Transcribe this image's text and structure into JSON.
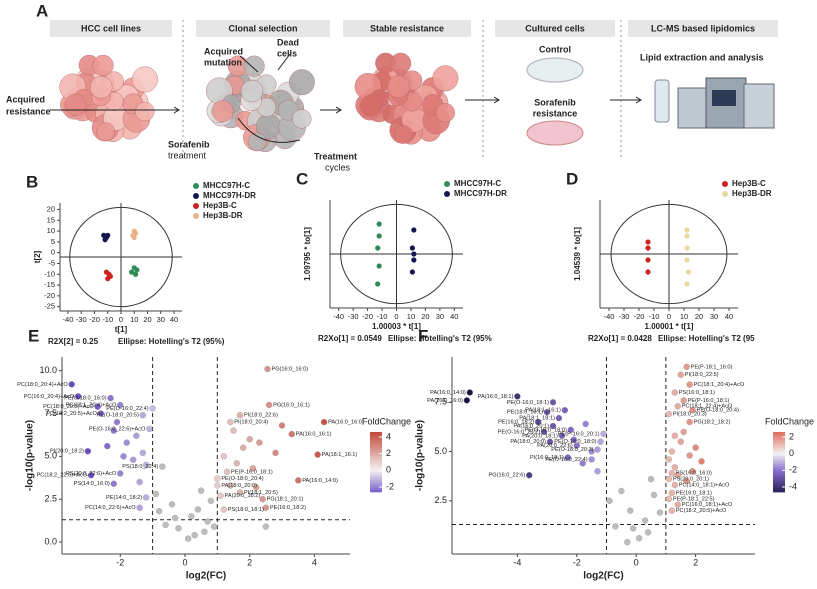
{
  "panel_a": {
    "label": "A",
    "steps": [
      "HCC cell lines",
      "Clonal selection",
      "Stable resistance",
      "Cultured cells",
      "LC-MS based lipidomics"
    ],
    "acquired": [
      "Acquired",
      "resistance"
    ],
    "mutation": [
      "Acquired",
      "mutation"
    ],
    "dead": [
      "Dead",
      "cells"
    ],
    "sorafenib": [
      "Sorafenib",
      "treatment"
    ],
    "cycles": [
      "Treatment",
      "cycles"
    ],
    "control": "Control",
    "resistance": [
      "Sorafenib",
      "resistance"
    ],
    "lipid": "Lipid extraction and analysis"
  },
  "chart_data": [
    {
      "type": "scatter",
      "panel": "B",
      "xlabel": "t[1]",
      "ylabel": "t[2]",
      "footer": [
        "R2X[2] = 0.25",
        "Ellipse: Hotelling's T2 (95%)"
      ],
      "xlim": [
        -46,
        46
      ],
      "ylim": [
        -27,
        23
      ],
      "xticks": [
        -40,
        -30,
        -20,
        -10,
        0,
        10,
        20,
        30,
        40
      ],
      "yticks": [
        -25,
        -20,
        -15,
        -10,
        -5,
        0,
        5,
        10,
        15,
        20
      ],
      "series": [
        {
          "name": "MHCC97H-C",
          "color": "#2e8b57",
          "x": [
            8,
            10,
            12,
            11
          ],
          "values": [
            -9,
            -7,
            -8,
            -10
          ]
        },
        {
          "name": "MHCC97H-DR",
          "color": "#15154f",
          "x": [
            -13,
            -11,
            -12,
            -10
          ],
          "values": [
            8,
            7,
            6,
            8
          ]
        },
        {
          "name": "Hep3B-C",
          "color": "#cc2222",
          "x": [
            -11,
            -9,
            -10,
            -8
          ],
          "values": [
            -9,
            -10,
            -12,
            -11
          ]
        },
        {
          "name": "Hep3B-DR",
          "color": "#e8b48a",
          "x": [
            9,
            10,
            11,
            10
          ],
          "values": [
            8,
            10,
            9,
            7
          ]
        }
      ]
    },
    {
      "type": "scatter",
      "panel": "C",
      "xlabel": "1.00003 * t[1]",
      "ylabel": "1.09795 * to[1]",
      "footer": [
        "R2Xo[1] = 0.0549",
        "Ellipse: Hotelling's T2 (95%"
      ],
      "xlim": [
        -46,
        46
      ],
      "ylim": [
        -9,
        9
      ],
      "xticks": [
        -40,
        -30,
        -20,
        -10,
        0,
        10,
        20,
        30,
        40
      ],
      "yticks": [],
      "series": [
        {
          "name": "MHCC97H-C",
          "color": "#2e8b57",
          "x": [
            -12,
            -12,
            -13,
            -12,
            -13
          ],
          "values": [
            5,
            3,
            1,
            -2,
            -5
          ]
        },
        {
          "name": "MHCC97H-DR",
          "color": "#15154f",
          "x": [
            12,
            11,
            12,
            12,
            11
          ],
          "values": [
            4,
            1,
            0,
            -1,
            -3
          ]
        }
      ]
    },
    {
      "type": "scatter",
      "panel": "D",
      "xlabel": "1.00001 * t[1]",
      "ylabel": "1.04539 * to[1]",
      "footer": [
        "R2Xo[1] = 0.0428",
        "Ellipse: Hotelling's T2 (95"
      ],
      "xlim": [
        -46,
        46
      ],
      "ylim": [
        -9,
        9
      ],
      "xticks": [
        -40,
        -30,
        -20,
        -10,
        0,
        10,
        20,
        30,
        40
      ],
      "yticks": [],
      "series": [
        {
          "name": "Hep3B-C",
          "color": "#cc2222",
          "x": [
            -14,
            -14,
            -14,
            -14
          ],
          "values": [
            2,
            1,
            -1,
            -3
          ]
        },
        {
          "name": "Hep3B-DR",
          "color": "#e8d9a0",
          "x": [
            12,
            12,
            12,
            12,
            13,
            12
          ],
          "values": [
            4,
            3,
            1,
            -1,
            -3,
            -5
          ]
        }
      ]
    },
    {
      "type": "volcano",
      "panel": "E",
      "xlabel": "log2(FC)",
      "ylabel": "-log10(p-value)",
      "xlim": [
        -3.8,
        5.1
      ],
      "ylim": [
        -0.7,
        10.8
      ],
      "xticks": [
        -2,
        0,
        2,
        4
      ],
      "yticks": [
        {
          "value": 0,
          "label": "0.0"
        },
        2.5,
        {
          "value": 5,
          "label": "5.0"
        },
        7.5,
        {
          "value": 10,
          "label": "10.0"
        }
      ],
      "thresholds": {
        "x": [
          -1,
          1
        ],
        "y": 1.3
      },
      "gray": "#bdbdbd",
      "colorbar": {
        "title": "FoldChange",
        "ticks": [
          4,
          2,
          0,
          -2
        ],
        "stops": [
          [
            -3,
            "#6a4bc4"
          ],
          [
            0,
            "#f2f2f2"
          ],
          [
            5,
            "#c0392b"
          ]
        ]
      },
      "x": [
        2.55,
        -3.5,
        -3.3,
        -2.3,
        -2.0,
        -2.7,
        -2.6,
        -1.0,
        -1.3,
        2.6,
        1.7,
        1.4,
        4.3,
        3.3,
        -1.1,
        -3.0,
        4.1,
        -2.9,
        -2.0,
        -0.7,
        1.3,
        -2.2,
        1.0,
        3.5,
        1.0,
        1.7,
        -1.2,
        1.1,
        2.4,
        -1.4,
        1.2,
        2.5,
        -1.5,
        -1.8,
        -2.2,
        -1.3,
        -1.6,
        -2.4,
        -1.2,
        -1.9,
        -2.1,
        -1.4,
        1.5,
        2.0,
        1.8,
        2.3,
        1.2,
        2.8,
        1.6,
        2.1,
        3.0,
        1.4,
        2.2,
        0.5,
        -0.4,
        0.2,
        -0.2,
        0.7,
        0.3,
        -0.6,
        0.8,
        -0.8,
        0.1,
        0.6,
        -0.3,
        0.9,
        -0.9,
        0.4,
        2.5
      ],
      "values": [
        10.1,
        9.2,
        8.5,
        8.4,
        8.0,
        7.9,
        7.5,
        7.8,
        7.4,
        8.0,
        7.4,
        7.0,
        7.0,
        6.3,
        6.6,
        5.3,
        5.1,
        3.9,
        4.0,
        4.4,
        4.1,
        3.4,
        3.7,
        3.6,
        3.3,
        2.9,
        2.6,
        2.7,
        2.5,
        2.0,
        1.9,
        2.0,
        6.2,
        5.8,
        6.5,
        5.2,
        4.8,
        5.6,
        4.5,
        5.0,
        7.0,
        3.5,
        6.5,
        6.0,
        5.5,
        5.8,
        5.0,
        5.2,
        4.6,
        4.3,
        6.8,
        3.3,
        3.2,
        3.0,
        2.2,
        1.5,
        0.8,
        1.2,
        0.4,
        1.0,
        2.4,
        1.8,
        0.2,
        0.6,
        1.4,
        0.9,
        2.8,
        1.9,
        0.9
      ],
      "labels": [
        "PG(16:0_16:0)",
        "PC(18:0_20:4)+AcO",
        "PC(16:0_20:4)+AcO",
        "PE(O-18:0_16:0)",
        "PC(18:1_20:4)+AcO",
        "PC(18:0_20:5)+AcO",
        "PC(18:2_20:5)+AcO",
        "PE(O-16:0_22:4)",
        "PE(O-18:0_20:5)",
        "PG(16:0_16:1)",
        "PI(18:0_22:6)",
        "PI(18:0_20:4)",
        "PA(16:0_16:0)",
        "PA(16:0_16:1)",
        "PE(O-16:0_22:6)+AcO",
        "PI(20:0_18:2)",
        "PA(18:1_16:1)",
        "PC(18:2_22:6)+AcO",
        "PS(20:0_22:6)+AcO",
        "PS(18:0_22:4)",
        "PE(P-16:0_18:1)",
        "PS(14:0_16:0)",
        "PE(O-18:0_20:4)",
        "PA(16:0_14:0)",
        "PA(18:0_20:0)",
        "PI(18:1_20:5)",
        "PE(14:0_18:2)",
        "PA(20:0_18:2)",
        "PG(18:1_20:1)",
        "PC(14:0_22:6)+AcO",
        "PS(18:0_18:1)",
        "PE(16:0_18:2)",
        null,
        null,
        null,
        null,
        null,
        null,
        null,
        null,
        null,
        null,
        null,
        null,
        null,
        null,
        null,
        null,
        null,
        null,
        null,
        null,
        null,
        null,
        null,
        null,
        null,
        null,
        null,
        null,
        null,
        null,
        null,
        null,
        null,
        null,
        null,
        null,
        null
      ]
    },
    {
      "type": "volcano",
      "panel": "F",
      "xlabel": "log2(FC)",
      "ylabel": "-log10(p-value)",
      "xlim": [
        -6.2,
        4.0
      ],
      "ylim": [
        -0.2,
        9.8
      ],
      "xticks": [
        -4,
        -2,
        0,
        2
      ],
      "yticks": [
        2.5,
        {
          "value": 5,
          "label": "5.0"
        },
        7.5
      ],
      "thresholds": {
        "x": [
          -1,
          1
        ],
        "y": 1.3
      },
      "gray": "#bdbdbd",
      "colorbar": {
        "title": "FoldChange",
        "ticks": [
          2,
          0,
          -2,
          -4
        ],
        "stops": [
          [
            -5,
            "#1c1444"
          ],
          [
            -2,
            "#8a6fcf"
          ],
          [
            0,
            "#f2f2f2"
          ],
          [
            2.5,
            "#e0705f"
          ]
        ]
      },
      "x": [
        -5.6,
        -5.7,
        -4.0,
        -2.8,
        -2.4,
        -3.0,
        -2.6,
        -3.3,
        -2.8,
        -2.2,
        -3.1,
        -2.5,
        -2.9,
        -2.0,
        -2.3,
        -3.6,
        1.7,
        1.5,
        1.8,
        1.3,
        1.6,
        1.4,
        1.9,
        1.8,
        1.1,
        -1.1,
        -1.2,
        -1.3,
        -1.5,
        1.2,
        1.1,
        1.3,
        1.2,
        1.1,
        1.4,
        1.2,
        1.2,
        1.5,
        1.8,
        1.3,
        2.0,
        1.6,
        1.4,
        1.9,
        2.2,
        1.1,
        1.7,
        1.3,
        -1.5,
        -1.8,
        -2.1,
        -1.3,
        -1.7,
        -0.5,
        -0.2,
        0.3,
        0.6,
        -0.7,
        0.1,
        0.4,
        -0.3,
        0.8,
        -0.9,
        0.5,
        -0.1
      ],
      "values": [
        8.0,
        7.6,
        7.8,
        7.5,
        7.1,
        7.0,
        6.7,
        6.5,
        6.3,
        6.1,
        6.0,
        5.8,
        5.5,
        5.3,
        4.7,
        3.8,
        9.3,
        8.9,
        8.4,
        8.0,
        7.6,
        7.3,
        7.1,
        6.5,
        6.9,
        5.9,
        5.5,
        5.1,
        4.6,
        3.9,
        3.6,
        3.3,
        2.9,
        2.6,
        2.3,
        2.0,
        5.0,
        5.5,
        4.8,
        4.2,
        5.2,
        6.0,
        3.8,
        4.0,
        4.5,
        4.6,
        3.5,
        5.8,
        5.0,
        4.4,
        5.6,
        4.0,
        6.4,
        3.0,
        2.0,
        1.5,
        2.8,
        1.2,
        0.6,
        0.9,
        0.4,
        1.9,
        2.5,
        3.6,
        1.1
      ],
      "labels": [
        "PA(16:0_14:0)",
        "PA(16:0_16:0)",
        "PA(16:0_18:1)",
        "PE(O-16:0_18:1)",
        "PA(18:1_16:1)",
        "PE(18:0_18:1)",
        "PA(18:1_18:1)",
        "PE(16:0_18:2)",
        "PA(16:0_20:1)",
        "PE(O-16:0_18:0)",
        "PE(O-16:0_20:2)",
        "PA(20:0_18:1)",
        "PA(18:0_20:0)",
        "PA(20:0_22:6)",
        "PI(16:0_18:1)",
        "PG(16:0_22:6)",
        "PE(P-18:1_16:0)",
        "PI(18:0_22:5)",
        "PC(18:1_20:4)+AcO",
        "PS(16:0_18:1)",
        "PE(P-16:0_18:1)",
        "PC(18:1_22:4)+AcO",
        "PE(O-18:0_20:4)",
        "PG(18:2_18:2)",
        "PI(18:0_20:3)",
        "PE(P-16:0_20:1)",
        "PE(O-18:0_18:0)",
        "PE(O-18:0_20:3)",
        "PE(O-16:0_22:4)",
        "PS(16:0_16:0)",
        "PS(20:0_20:1)",
        "PC(14:0_18:1)+AcO",
        "PE(16:0_18:1)",
        "PE(P-18:1_22:5)",
        "PC(16:0_18:1)+AcO",
        "PC(18:2_20:5)+AcO",
        null,
        null,
        null,
        null,
        null,
        null,
        null,
        null,
        null,
        null,
        null,
        null,
        null,
        null,
        null,
        null,
        null,
        null,
        null,
        null,
        null,
        null,
        null,
        null,
        null,
        null,
        null,
        null,
        null
      ]
    }
  ]
}
